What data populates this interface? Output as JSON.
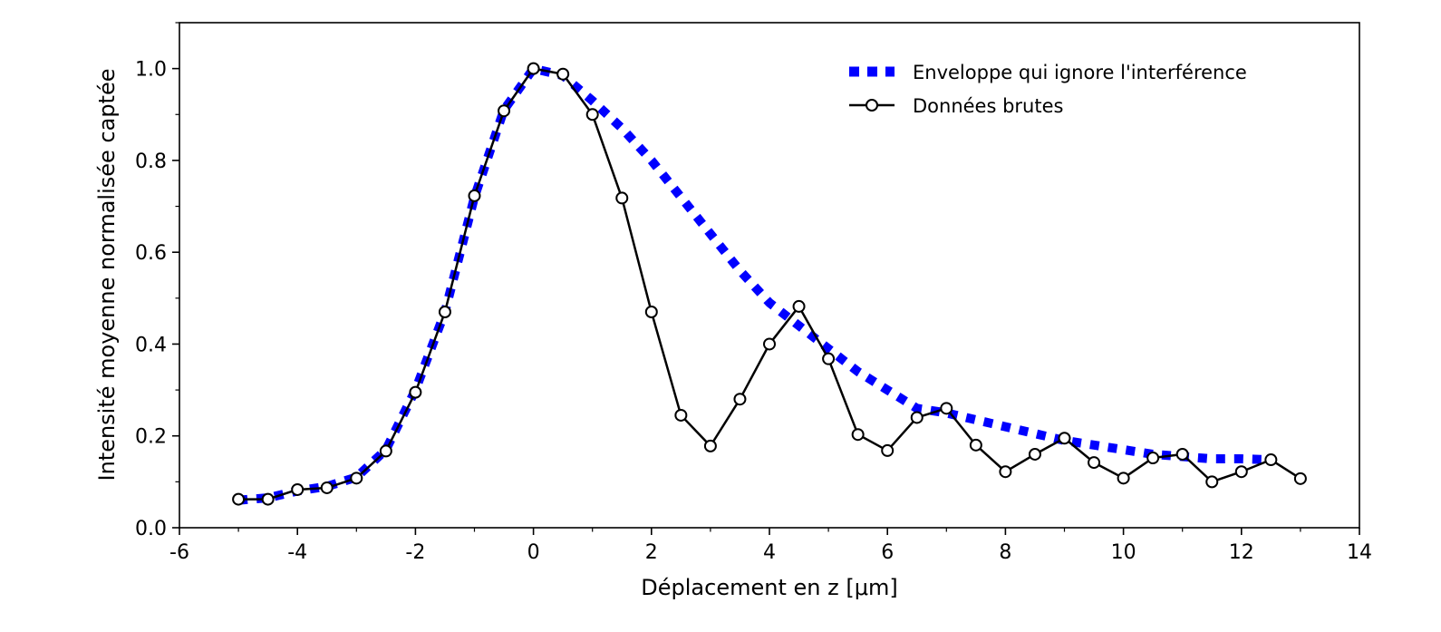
{
  "chart_data": {
    "type": "line",
    "title": "",
    "xlabel": "Déplacement en z [μm]",
    "ylabel": "Intensité moyenne normalisée captée",
    "xlim": [
      -6,
      14
    ],
    "ylim": [
      0.0,
      1.1
    ],
    "xticks": [
      -6,
      -4,
      -2,
      0,
      2,
      4,
      6,
      8,
      10,
      12,
      14
    ],
    "xtick_labels": [
      "-6",
      "-4",
      "-2",
      "0",
      "2",
      "4",
      "6",
      "8",
      "10",
      "12",
      "14"
    ],
    "yticks": [
      0.0,
      0.2,
      0.4,
      0.6,
      0.8,
      1.0
    ],
    "ytick_labels": [
      "0.0",
      "0.2",
      "0.4",
      "0.6",
      "0.8",
      "1.0"
    ],
    "grid": false,
    "legend_position": "top-right",
    "series": [
      {
        "name": "Enveloppe qui ignore l'interférence",
        "style": "dotted",
        "color": "#0000ff",
        "x": [
          -5,
          -4.5,
          -4,
          -3.5,
          -3,
          -2.5,
          -2,
          -1.5,
          -1,
          -0.5,
          0,
          0.5,
          1,
          1.5,
          2,
          2.5,
          3,
          3.5,
          4,
          4.5,
          5,
          5.5,
          6,
          6.5,
          7,
          7.5,
          8,
          8.5,
          9,
          9.5,
          10,
          10.5,
          11,
          11.5,
          12,
          12.5
        ],
        "y": [
          0.06,
          0.065,
          0.08,
          0.09,
          0.11,
          0.17,
          0.3,
          0.47,
          0.72,
          0.91,
          1.0,
          0.985,
          0.93,
          0.87,
          0.8,
          0.72,
          0.64,
          0.56,
          0.49,
          0.44,
          0.39,
          0.34,
          0.3,
          0.26,
          0.25,
          0.235,
          0.22,
          0.205,
          0.19,
          0.18,
          0.17,
          0.16,
          0.155,
          0.15,
          0.15,
          0.148
        ]
      },
      {
        "name": "Données brutes",
        "style": "solid-circle-markers",
        "color": "#000000",
        "x": [
          -5,
          -4.5,
          -4,
          -3.5,
          -3,
          -2.5,
          -2,
          -1.5,
          -1,
          -0.5,
          0,
          0.5,
          1,
          1.5,
          2,
          2.5,
          3,
          3.5,
          4,
          4.5,
          5,
          5.5,
          6,
          6.5,
          7,
          7.5,
          8,
          8.5,
          9,
          9.5,
          10,
          10.5,
          11,
          11.5,
          12,
          12.5,
          13
        ],
        "y": [
          0.062,
          0.062,
          0.083,
          0.087,
          0.108,
          0.167,
          0.295,
          0.47,
          0.723,
          0.908,
          1.0,
          0.988,
          0.9,
          0.718,
          0.47,
          0.245,
          0.178,
          0.28,
          0.4,
          0.482,
          0.368,
          0.203,
          0.168,
          0.24,
          0.26,
          0.18,
          0.122,
          0.16,
          0.195,
          0.142,
          0.108,
          0.152,
          0.16,
          0.1,
          0.122,
          0.148,
          0.107
        ]
      }
    ]
  }
}
